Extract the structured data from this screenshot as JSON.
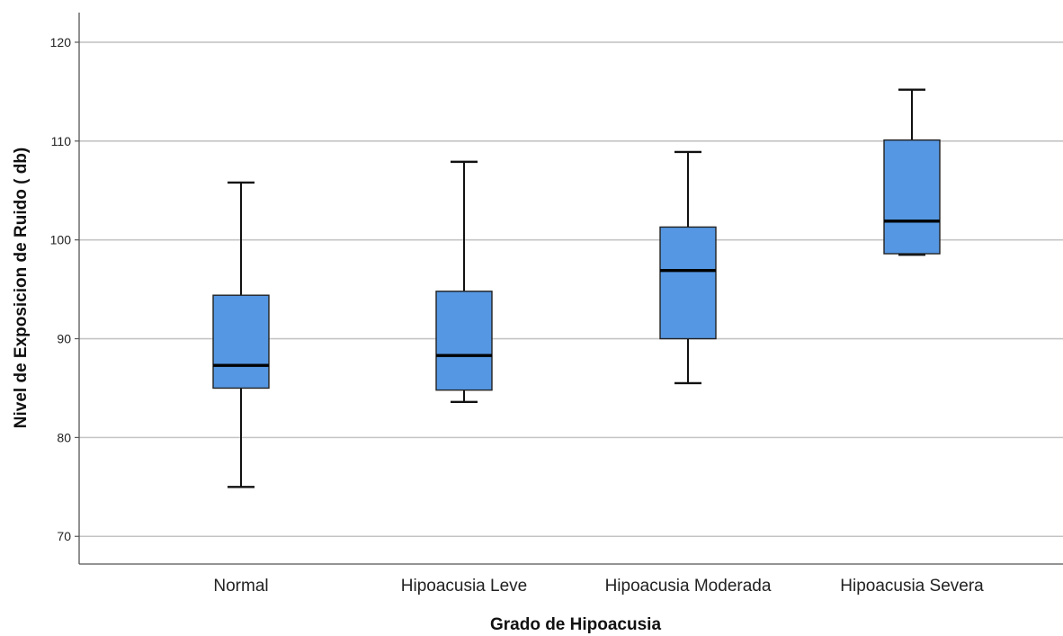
{
  "chart_data": {
    "type": "boxplot",
    "xlabel": "Grado de Hipoacusia",
    "ylabel": "Nivel de Exposicion de Ruido ( db)",
    "ylim": [
      67.2,
      123.0
    ],
    "yticks": [
      70,
      80,
      90,
      100,
      110,
      120
    ],
    "grid": "horizontal",
    "box_color": "#5597e2",
    "categories": [
      "Normal",
      "Hipoacusia Leve",
      "Hipoacusia Moderada",
      "Hipoacusia Severa"
    ],
    "boxes": [
      {
        "category": "Normal",
        "min": 75.0,
        "q1": 85.0,
        "median": 87.3,
        "q3": 94.4,
        "max": 105.8
      },
      {
        "category": "Hipoacusia Leve",
        "min": 83.6,
        "q1": 84.8,
        "median": 88.3,
        "q3": 94.8,
        "max": 107.9
      },
      {
        "category": "Hipoacusia Moderada",
        "min": 85.5,
        "q1": 90.0,
        "median": 96.9,
        "q3": 101.3,
        "max": 108.9
      },
      {
        "category": "Hipoacusia Severa",
        "min": 98.5,
        "q1": 98.6,
        "median": 101.9,
        "q3": 110.1,
        "max": 115.2
      }
    ]
  }
}
